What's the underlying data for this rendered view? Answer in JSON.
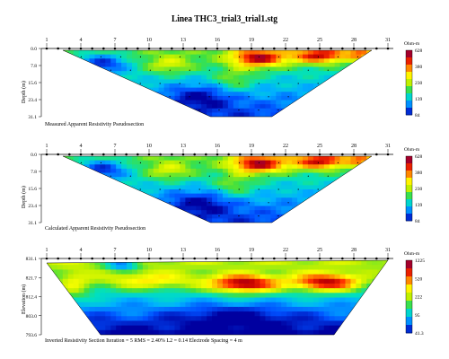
{
  "title": "Linea THC3_trial3_trial1.stg",
  "colors": {
    "scale": [
      "#0000a0",
      "#0050ff",
      "#00b0ff",
      "#00e0c0",
      "#40e040",
      "#c0f000",
      "#ffff00",
      "#ffa000",
      "#ff3000",
      "#c00000",
      "#800060"
    ],
    "background": "#ffffff"
  },
  "chart_data": [
    {
      "type": "heatmap",
      "title": "",
      "caption": "Measured Apparent Resistivity Pseudosection",
      "xlabel": "",
      "ylabel": "Depth (m)",
      "x_ticks": [
        "1",
        "4",
        "7",
        "10",
        "13",
        "16",
        "19",
        "22",
        "25",
        "28",
        "31"
      ],
      "y_ticks": [
        "0.0",
        "7.8",
        "15.6",
        "23.4",
        "31.1"
      ],
      "colorbar_title": "Ohm-m",
      "colorbar_ticks": [
        "628",
        "380",
        "230",
        "139",
        "84"
      ],
      "grid": false
    },
    {
      "type": "heatmap",
      "title": "",
      "caption": "Calculated Apparent Resistivity Pseudosection",
      "xlabel": "",
      "ylabel": "Depth (m)",
      "x_ticks": [
        "1",
        "4",
        "7",
        "10",
        "13",
        "16",
        "19",
        "22",
        "25",
        "28",
        "31"
      ],
      "y_ticks": [
        "0.0",
        "7.8",
        "15.6",
        "23.4",
        "31.1"
      ],
      "colorbar_title": "Ohm-m",
      "colorbar_ticks": [
        "628",
        "380",
        "230",
        "139",
        "84"
      ],
      "grid": false
    },
    {
      "type": "heatmap",
      "title": "",
      "caption": "Inverted Resistivity Section    Iteration = 5    RMS = 2.40%    L2 = 0.14    Electrode Spacing = 4 m",
      "xlabel": "",
      "ylabel": "Elevation (m)",
      "x_ticks": [
        "1",
        "4",
        "7",
        "10",
        "13",
        "16",
        "19",
        "22",
        "25",
        "28",
        "31"
      ],
      "y_ticks": [
        "831.1",
        "821.7",
        "812.4",
        "803.0",
        "793.6"
      ],
      "colorbar_title": "Ohm-m",
      "colorbar_ticks": [
        "1225",
        "520",
        "222",
        "95",
        "41.3"
      ],
      "grid": false
    }
  ]
}
